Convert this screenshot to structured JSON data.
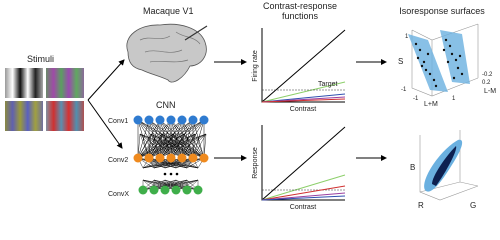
{
  "stimuli": {
    "label": "Stimuli"
  },
  "macaque": {
    "label": "Macaque V1"
  },
  "cnn": {
    "label": "CNN",
    "layers": [
      "Conv1",
      "Conv2",
      "ConvX"
    ]
  },
  "contrast_response": {
    "title": [
      "Contrast-response",
      "functions"
    ],
    "top": {
      "y_label": "Firing rate",
      "x_label": "Contrast",
      "target": "Target"
    },
    "bottom": {
      "y_label": "Response",
      "x_label": "Contrast"
    }
  },
  "isoresponse": {
    "title": "Isoresponse surfaces",
    "top": {
      "axes": [
        "S",
        "L+M",
        "L-M"
      ],
      "ticks": [
        "1",
        "-1",
        "-1",
        "1",
        "-0.2",
        "0.2"
      ]
    },
    "bottom": {
      "axes": [
        "B",
        "R",
        "G"
      ]
    }
  }
}
